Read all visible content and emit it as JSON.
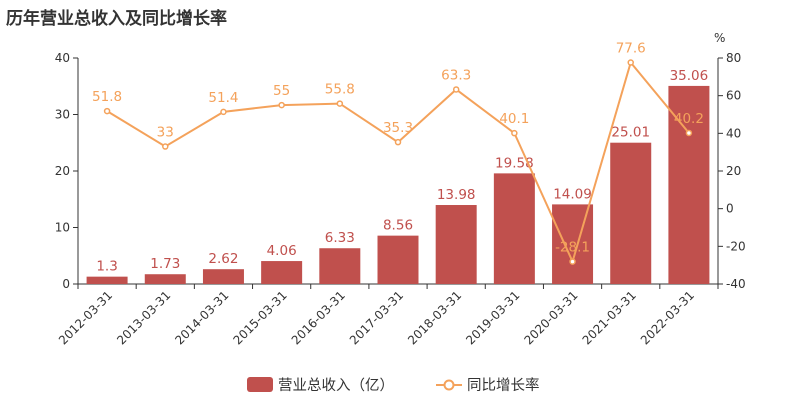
{
  "chart_data": {
    "type": "bar",
    "title": "历年营业总收入及同比增长率",
    "categories": [
      "2012-03-31",
      "2013-03-31",
      "2014-03-31",
      "2015-03-31",
      "2016-03-31",
      "2017-03-31",
      "2018-03-31",
      "2019-03-31",
      "2020-03-31",
      "2021-03-31",
      "2022-03-31"
    ],
    "series": [
      {
        "name": "营业总收入（亿）",
        "type": "bar",
        "axis": "left",
        "color": "#c0504d",
        "values": [
          1.3,
          1.73,
          2.62,
          4.06,
          6.33,
          8.56,
          13.98,
          19.58,
          14.09,
          25.01,
          35.06
        ]
      },
      {
        "name": "同比增长率",
        "type": "line",
        "axis": "right",
        "color": "#f4a25b",
        "values": [
          51.8,
          33,
          51.4,
          55,
          55.8,
          35.3,
          63.3,
          40.1,
          -28.1,
          77.6,
          40.2
        ]
      }
    ],
    "y_left": {
      "range": [
        0,
        40
      ],
      "ticks": [
        0,
        10,
        20,
        30,
        40
      ]
    },
    "y_right": {
      "label": "%",
      "range": [
        -40,
        80
      ],
      "ticks": [
        -40,
        -20,
        0,
        20,
        40,
        60,
        80
      ]
    },
    "grid": false,
    "legend": "bottom-center"
  }
}
